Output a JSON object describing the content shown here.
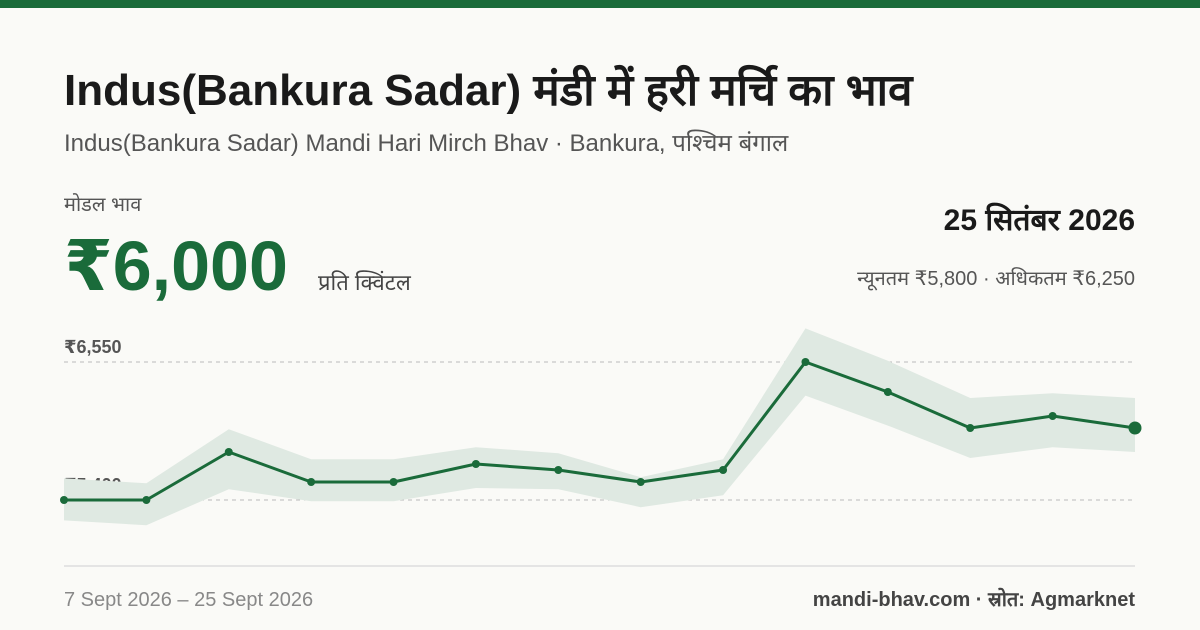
{
  "header": {
    "title": "Indus(Bankura Sadar) मंडी में हरी मर्चि का भाव",
    "subtitle": "Indus(Bankura Sadar) Mandi Hari Mirch Bhav · Bankura, पश्चिम बंगाल",
    "modal_label": "मोडल भाव",
    "modal_price": "₹6,000",
    "unit": "प्रति क्विंटल",
    "date": "25 सितंबर 2026",
    "min_max": "न्यूनतम ₹5,800 · अधिकतम ₹6,250"
  },
  "footer": {
    "range": "7 Sept 2026 – 25 Sept 2026",
    "source": "mandi-bhav.com · स्रोत: Agmarknet"
  },
  "chart_data": {
    "type": "line",
    "values": [
      5400,
      5400,
      5800,
      5550,
      5550,
      5700,
      5650,
      5550,
      5650,
      6550,
      6300,
      6000,
      6100,
      6000
    ],
    "color": "#1a6b3a",
    "band": {
      "upper": [
        5580,
        5540,
        5990,
        5740,
        5740,
        5840,
        5790,
        5590,
        5740,
        6830,
        6560,
        6250,
        6290,
        6250
      ],
      "lower": [
        5230,
        5190,
        5490,
        5390,
        5390,
        5500,
        5490,
        5340,
        5440,
        6270,
        6020,
        5750,
        5840,
        5800
      ],
      "color": "#dfe9e2"
    },
    "ylim": [
      4850,
      6900
    ],
    "yticks": [
      {
        "value": 5400,
        "label": "₹5,400"
      },
      {
        "value": 6550,
        "label": "₹6,550"
      }
    ],
    "grid": true
  }
}
